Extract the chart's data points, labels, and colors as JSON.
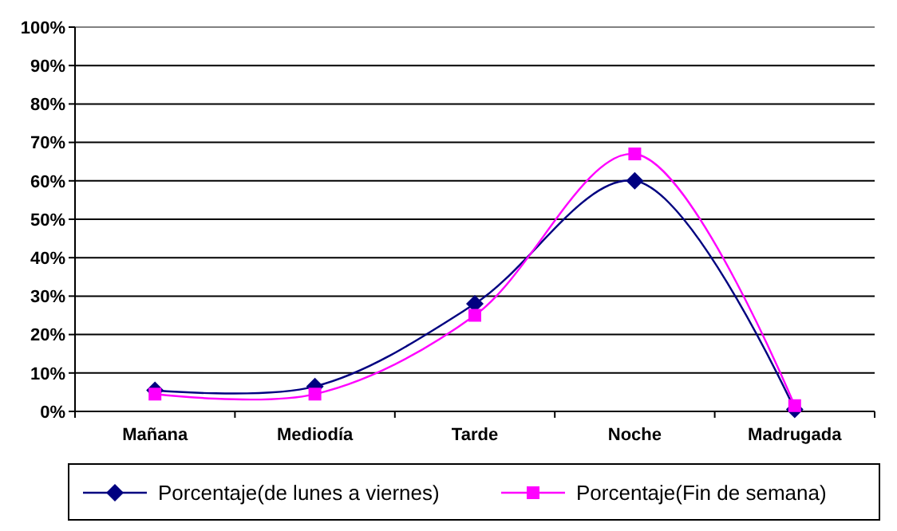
{
  "chart_data": {
    "type": "line",
    "categories": [
      "Mañana",
      "Mediodía",
      "Tarde",
      "Noche",
      "Madrugada"
    ],
    "series": [
      {
        "name": "Porcentaje(de lunes a viernes)",
        "color": "#000080",
        "marker": "diamond",
        "values": [
          5.5,
          6.5,
          28,
          60,
          0.5
        ]
      },
      {
        "name": "Porcentaje(Fin de semana)",
        "color": "#ff00ff",
        "marker": "square",
        "values": [
          4.5,
          4.5,
          25,
          67,
          1.5
        ]
      }
    ],
    "ylim": [
      0,
      100
    ],
    "yticks": [
      {
        "value": 0,
        "label": "0%"
      },
      {
        "value": 10,
        "label": "10%"
      },
      {
        "value": 20,
        "label": "20%"
      },
      {
        "value": 30,
        "label": "30%"
      },
      {
        "value": 40,
        "label": "40%"
      },
      {
        "value": 50,
        "label": "50%"
      },
      {
        "value": 60,
        "label": "60%"
      },
      {
        "value": 70,
        "label": "70%"
      },
      {
        "value": 80,
        "label": "80%"
      },
      {
        "value": 90,
        "label": "90%"
      },
      {
        "value": 100,
        "label": "100%"
      }
    ],
    "grid": "y",
    "legend": "bottom"
  }
}
